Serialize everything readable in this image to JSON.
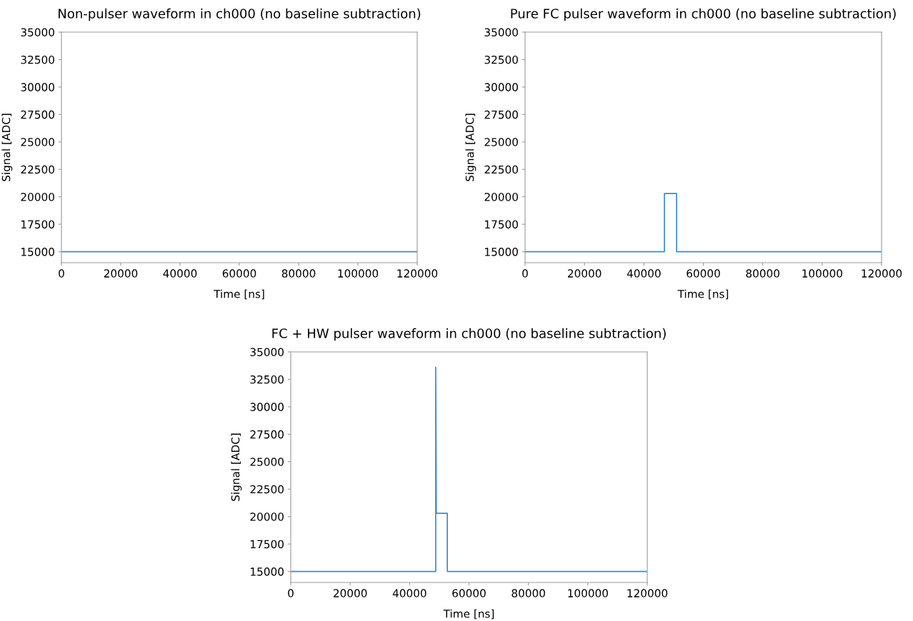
{
  "chart_data": [
    {
      "type": "line",
      "title": "Non-pulser waveform in ch000 (no baseline subtraction)",
      "xlabel": "Time [ns]",
      "ylabel": "Signal [ADC]",
      "series": [
        {
          "color": "#3a8bc9",
          "x": [
            0,
            120000
          ],
          "values": [
            15000,
            15000
          ]
        }
      ],
      "xlim": [
        0,
        120000
      ],
      "xticks": [
        0,
        20000,
        40000,
        60000,
        80000,
        100000,
        120000
      ],
      "ylim": [
        14000,
        35000
      ],
      "yticks": [
        15000,
        17500,
        20000,
        22500,
        25000,
        27500,
        30000,
        32500,
        35000
      ],
      "grid": false
    },
    {
      "type": "line",
      "title": "Pure FC pulser waveform in ch000 (no baseline subtraction)",
      "xlabel": "Time [ns]",
      "ylabel": "Signal [ADC]",
      "series": [
        {
          "color": "#3a8bc9",
          "x": [
            0,
            46900,
            46900,
            51000,
            51000,
            120000
          ],
          "values": [
            15000,
            15000,
            20300,
            20300,
            15000,
            15000
          ]
        }
      ],
      "xlim": [
        0,
        120000
      ],
      "xticks": [
        0,
        20000,
        40000,
        60000,
        80000,
        100000,
        120000
      ],
      "ylim": [
        14000,
        35000
      ],
      "yticks": [
        15000,
        17500,
        20000,
        22500,
        25000,
        27500,
        30000,
        32500,
        35000
      ],
      "grid": false
    },
    {
      "type": "line",
      "title": "FC + HW pulser waveform in ch000 (no baseline subtraction)",
      "xlabel": "Time [ns]",
      "ylabel": "Signal [ADC]",
      "series": [
        {
          "color": "#3a8bc9",
          "x": [
            0,
            48800,
            48800,
            49000,
            49000,
            52700,
            52700,
            120000
          ],
          "values": [
            15000,
            15000,
            33600,
            20300,
            20300,
            20300,
            15000,
            15000
          ]
        }
      ],
      "xlim": [
        0,
        120000
      ],
      "xticks": [
        0,
        20000,
        40000,
        60000,
        80000,
        100000,
        120000
      ],
      "ylim": [
        14000,
        35000
      ],
      "yticks": [
        15000,
        17500,
        20000,
        22500,
        25000,
        27500,
        30000,
        32500,
        35000
      ],
      "grid": false
    }
  ]
}
